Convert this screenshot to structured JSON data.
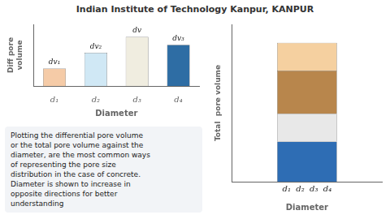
{
  "title": "Indian Institute of Technology Kanpur, KANPUR",
  "annotations": [
    "Plotting the differential  pore volume",
    "or the total pore volume against the",
    "diameter, are the most common ways",
    "of representing the pore size",
    "distribution in the case of concrete.",
    "Diameter is shown to increase in",
    "opposite directions for better",
    "understanding"
  ],
  "chart_data": [
    {
      "type": "bar",
      "categories": [
        "d₁",
        "d₂",
        "d₃",
        "d₄"
      ],
      "values": [
        0.22,
        0.42,
        0.62,
        0.52
      ],
      "colors": [
        "#f5cba7",
        "#d0e8f5",
        "#f0ede0",
        "#2e6da4"
      ],
      "annotations": [
        "dv₁",
        "dv₂",
        "dv",
        "dv₃"
      ],
      "xlabel": "Diameter",
      "ylabel": "Diff pore\nvolume",
      "ylim": [
        0,
        0.78
      ],
      "grid": false,
      "tick_labels": "x"
    },
    {
      "type": "bar",
      "stacked": true,
      "categories": [
        null
      ],
      "series": [
        {
          "color": "#2e6db4",
          "values": [
            0.26
          ]
        },
        {
          "color": "#e8e8e8",
          "values": [
            0.18
          ]
        },
        {
          "color": "#b8864c",
          "values": [
            0.28
          ]
        },
        {
          "color": "#f5d0a0",
          "values": [
            0.18
          ]
        }
      ],
      "annotations": [
        "d₁  d₂  d₃  d₄"
      ],
      "xlabel": "Diameter",
      "ylabel": "Total  pore volume",
      "ylim": [
        0,
        1.02
      ],
      "grid": false,
      "tick_labels": false
    }
  ]
}
